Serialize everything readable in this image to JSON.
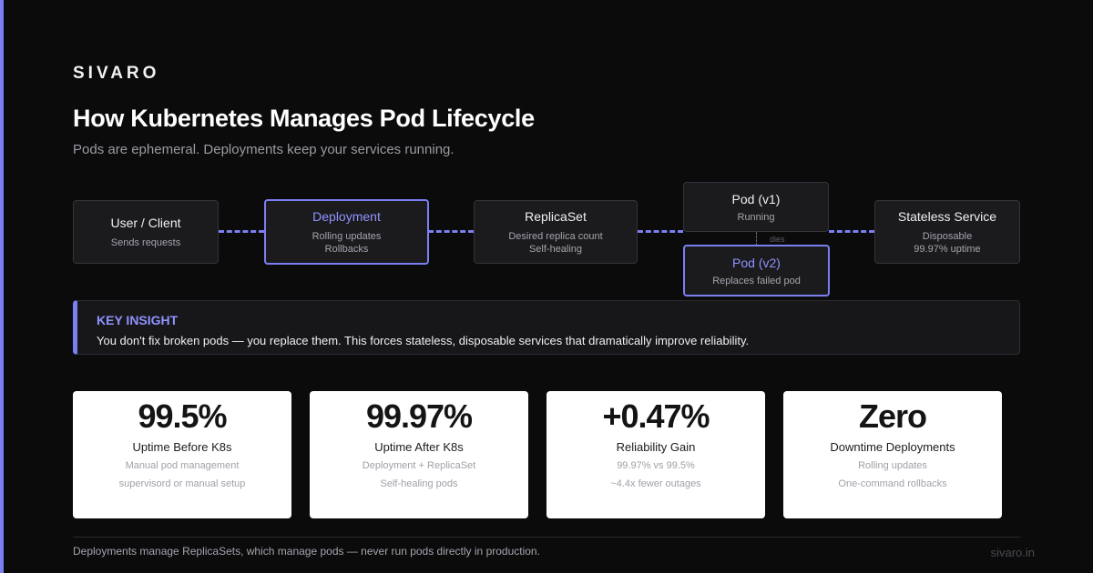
{
  "brand": "SIVARO",
  "title": "How Kubernetes Manages Pod Lifecycle",
  "subtitle": "Pods are ephemeral. Deployments keep your services running.",
  "flow": {
    "client": {
      "title": "User / Client",
      "lines": [
        "Sends requests"
      ]
    },
    "deployment": {
      "title": "Deployment",
      "lines": [
        "Rolling updates",
        "Rollbacks"
      ]
    },
    "replicaset": {
      "title": "ReplicaSet",
      "lines": [
        "Desired replica count",
        "Self-healing"
      ]
    },
    "pod_v1": {
      "title": "Pod (v1)",
      "lines": [
        "Running"
      ]
    },
    "pod_v2": {
      "title": "Pod (v2)",
      "lines": [
        "Replaces failed pod"
      ]
    },
    "dies_label": "dies",
    "service": {
      "title": "Stateless Service",
      "lines": [
        "Disposable",
        "99.97% uptime"
      ]
    }
  },
  "insight": {
    "label": "KEY INSIGHT",
    "text": "You don't fix broken pods — you replace them. This forces stateless, disposable services that dramatically improve reliability."
  },
  "stats": [
    {
      "value": "99.5%",
      "label": "Uptime Before K8s",
      "lines": [
        "Manual pod management",
        "supervisord or manual setup"
      ]
    },
    {
      "value": "99.97%",
      "label": "Uptime After K8s",
      "lines": [
        "Deployment + ReplicaSet",
        "Self-healing pods"
      ]
    },
    {
      "value": "+0.47%",
      "label": "Reliability Gain",
      "lines": [
        "99.97% vs 99.5%",
        "~4.4x fewer outages"
      ]
    },
    {
      "value": "Zero",
      "label": "Downtime Deployments",
      "lines": [
        "Rolling updates",
        "One-command rollbacks"
      ]
    }
  ],
  "footer": {
    "text": "Deployments manage ReplicaSets, which manage pods — never run pods directly in production.",
    "url": "sivaro.in"
  },
  "colors": {
    "accent": "#7b7ff0",
    "background": "#0b0b0c",
    "card": "#1b1b1e"
  }
}
